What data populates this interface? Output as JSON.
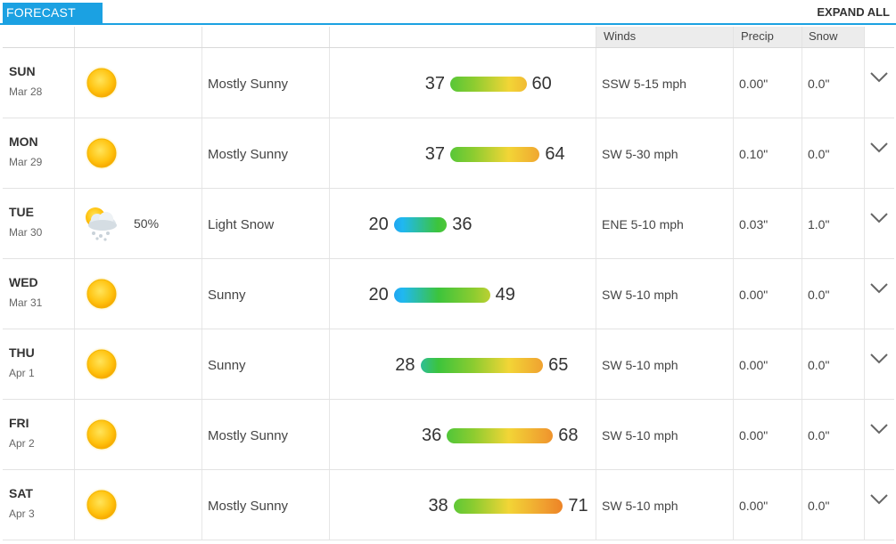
{
  "header": {
    "tab_label": "FORECAST",
    "expand_label": "EXPAND ALL"
  },
  "columns": {
    "winds": "Winds",
    "precip": "Precip",
    "snow": "Snow"
  },
  "colors": {
    "accent": "#1ba1e2",
    "gradient_stops": [
      "#1e6ff0",
      "#20b8f0",
      "#3cc43c",
      "#8ccc30",
      "#f2d536",
      "#f0a030",
      "#ea6a1e"
    ]
  },
  "days": [
    {
      "day": "SUN",
      "date": "Mar 28",
      "icon": "sunny-icon",
      "pop": "",
      "condition": "Mostly Sunny",
      "lo": "37",
      "hi": "60",
      "wind": "SSW 5-15 mph",
      "precip": "0.00\"",
      "snow": "0.0\""
    },
    {
      "day": "MON",
      "date": "Mar 29",
      "icon": "sunny-icon",
      "pop": "",
      "condition": "Mostly Sunny",
      "lo": "37",
      "hi": "64",
      "wind": "SW 5-30 mph",
      "precip": "0.10\"",
      "snow": "0.0\""
    },
    {
      "day": "TUE",
      "date": "Mar 30",
      "icon": "snow-icon",
      "pop": "50%",
      "condition": "Light Snow",
      "lo": "20",
      "hi": "36",
      "wind": "ENE 5-10 mph",
      "precip": "0.03\"",
      "snow": "1.0\""
    },
    {
      "day": "WED",
      "date": "Mar 31",
      "icon": "sunny-icon",
      "pop": "",
      "condition": "Sunny",
      "lo": "20",
      "hi": "49",
      "wind": "SW 5-10 mph",
      "precip": "0.00\"",
      "snow": "0.0\""
    },
    {
      "day": "THU",
      "date": "Apr 1",
      "icon": "sunny-icon",
      "pop": "",
      "condition": "Sunny",
      "lo": "28",
      "hi": "65",
      "wind": "SW 5-10 mph",
      "precip": "0.00\"",
      "snow": "0.0\""
    },
    {
      "day": "FRI",
      "date": "Apr 2",
      "icon": "sunny-icon",
      "pop": "",
      "condition": "Mostly Sunny",
      "lo": "36",
      "hi": "68",
      "wind": "SW 5-10 mph",
      "precip": "0.00\"",
      "snow": "0.0\""
    },
    {
      "day": "SAT",
      "date": "Apr 3",
      "icon": "sunny-icon",
      "pop": "",
      "condition": "Mostly Sunny",
      "lo": "38",
      "hi": "71",
      "wind": "SW 5-10 mph",
      "precip": "0.00\"",
      "snow": "0.0\""
    }
  ]
}
